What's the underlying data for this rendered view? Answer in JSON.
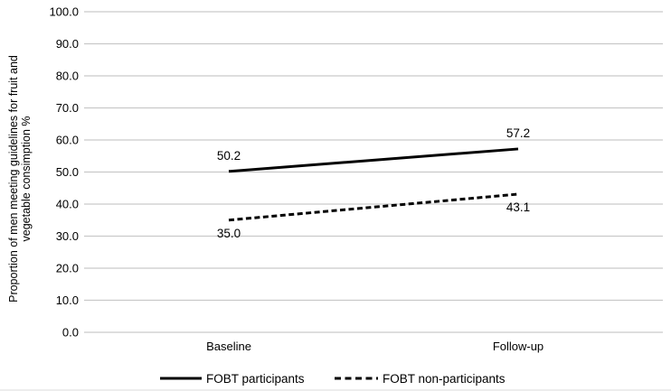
{
  "chart_data": {
    "type": "line",
    "title": "",
    "categories": [
      "Baseline",
      "Follow-up"
    ],
    "series": [
      {
        "name": "FOBT participants",
        "values": [
          50.2,
          57.2
        ],
        "labels": [
          "50.2",
          "57.2"
        ],
        "line_style": "solid",
        "label_position": "above"
      },
      {
        "name": "FOBT non-participants",
        "values": [
          35.0,
          43.1
        ],
        "labels": [
          "35.0",
          "43.1"
        ],
        "line_style": "dashed",
        "label_position": "below"
      }
    ],
    "xlabel": "",
    "ylabel_lines": [
      "Proportion of men meeting guidelines for fruit and",
      "vegetable consimption %"
    ],
    "ylim": [
      0,
      100
    ],
    "ytick_step": 10,
    "ytick_labels": [
      "100.0",
      "90.0",
      "80.0",
      "70.0",
      "60.0",
      "50.0",
      "40.0",
      "30.0",
      "20.0",
      "10.0",
      "0.0"
    ],
    "grid": "horizontal",
    "legend_position": "bottom",
    "colors": {
      "series_line": "#000000",
      "grid_line": "#c9c9c9",
      "text": "#000000",
      "background": "#ffffff"
    }
  }
}
